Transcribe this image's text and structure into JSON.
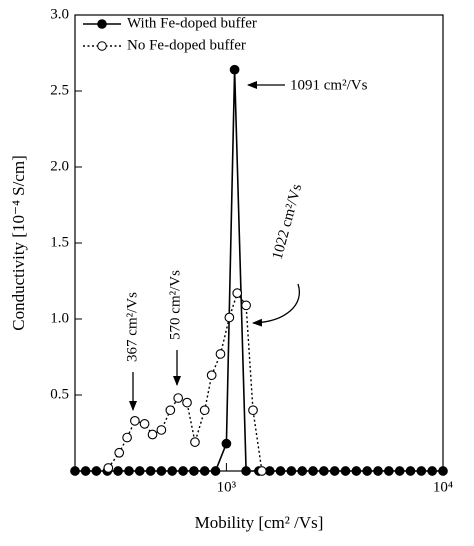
{
  "chart_data": {
    "type": "line",
    "x_label": "Mobility [cm² /Vs]",
    "y_label": "Conductivity [10⁻⁴ S/cm]",
    "log_x": true,
    "xlim": [
      200,
      10000
    ],
    "xticks": [
      {
        "value": 1000,
        "label": "10³"
      },
      {
        "value": 10000,
        "label": "10⁴"
      }
    ],
    "ylim": [
      0,
      3
    ],
    "yticks": [
      0.5,
      {
        "value": 1,
        "label": "1.0"
      },
      1.5,
      {
        "value": 2,
        "label": "2.0"
      },
      2.5,
      {
        "value": 3,
        "label": "3.0"
      }
    ],
    "legend": "top-left",
    "series": [
      {
        "name": "With Fe-doped buffer",
        "color": "#000000",
        "marker": "filled",
        "line": "solid",
        "x": [
          200,
          224,
          251,
          282,
          316,
          355,
          398,
          447,
          501,
          562,
          631,
          708,
          794,
          891,
          1000,
          1091,
          1233,
          1413,
          1585,
          1778,
          1995,
          2239,
          2512,
          2818,
          3162,
          3548,
          3981,
          4467,
          5012,
          5623,
          6310,
          7079,
          7943,
          8913,
          10000
        ],
        "values": [
          0,
          0,
          0,
          0,
          0,
          0,
          0,
          0,
          0,
          0,
          0,
          0,
          0,
          0,
          0.18,
          2.64,
          0,
          0,
          0,
          0,
          0,
          0,
          0,
          0,
          0,
          0,
          0,
          0,
          0,
          0,
          0,
          0,
          0,
          0,
          0
        ]
      },
      {
        "name": "No Fe-doped buffer",
        "color": "#000000",
        "marker": "open",
        "line": "dotted",
        "x": [
          285,
          320,
          348,
          378,
          419,
          456,
          501,
          551,
          599,
          658,
          716,
          794,
          855,
          939,
          1032,
          1122,
          1233,
          1327,
          1458
        ],
        "values": [
          0.02,
          0.12,
          0.22,
          0.33,
          0.31,
          0.24,
          0.27,
          0.4,
          0.48,
          0.45,
          0.19,
          0.4,
          0.63,
          0.77,
          1.01,
          1.17,
          1.09,
          0.4,
          0
        ]
      }
    ],
    "annotations": [
      "1091 cm²/Vs",
      "1022 cm²/Vs",
      "570 cm²/Vs",
      "367 cm²/Vs"
    ]
  }
}
